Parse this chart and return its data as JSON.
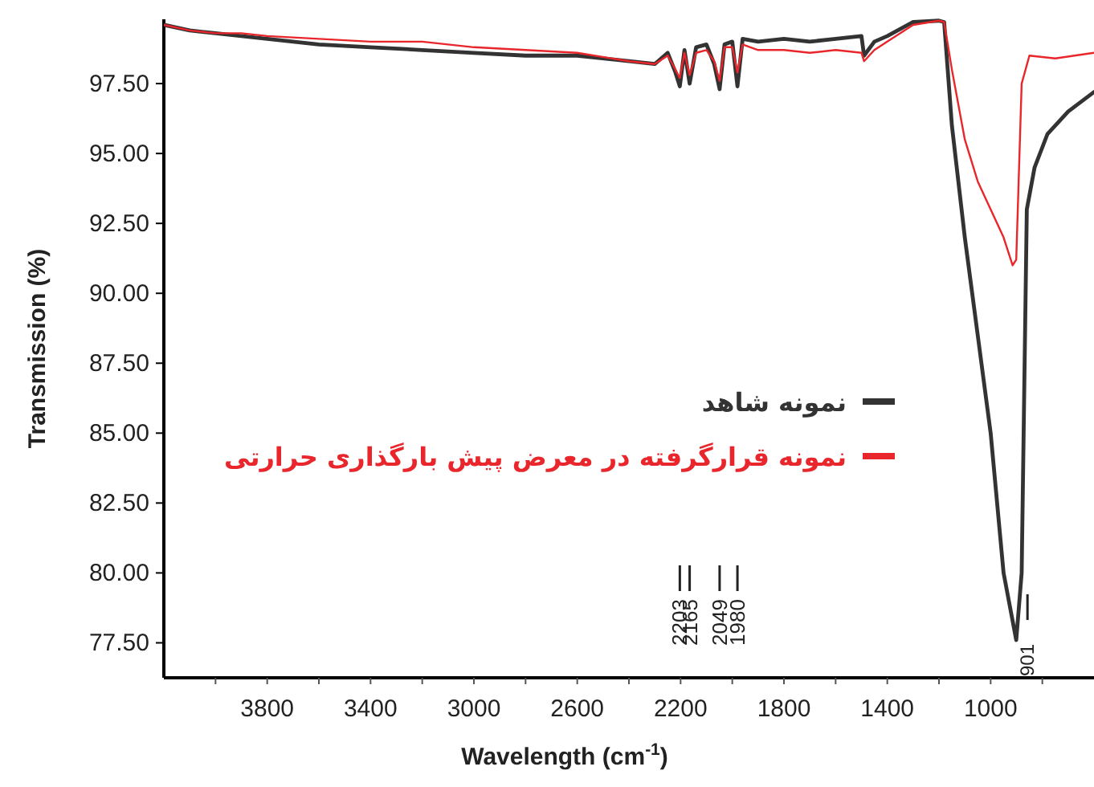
{
  "chart_data": {
    "type": "line",
    "xlabel": "Wavelength (cm$^{-1}$)",
    "ylabel": "Transmission (%)",
    "xlim": [
      4200,
      600
    ],
    "ylim": [
      76.25,
      99.8
    ],
    "xticks": [
      {
        "value": 4000,
        "label": null
      },
      {
        "value": 3800,
        "label": "3800"
      },
      {
        "value": 3600,
        "label": null
      },
      {
        "value": 3400,
        "label": "3400"
      },
      {
        "value": 3200,
        "label": null
      },
      {
        "value": 3000,
        "label": "3000"
      },
      {
        "value": 2800,
        "label": null
      },
      {
        "value": 2600,
        "label": "2600"
      },
      {
        "value": 2400,
        "label": null
      },
      {
        "value": 2200,
        "label": "2200"
      },
      {
        "value": 2000,
        "label": null
      },
      {
        "value": 1800,
        "label": "1800"
      },
      {
        "value": 1600,
        "label": null
      },
      {
        "value": 1400,
        "label": "1400"
      },
      {
        "value": 1200,
        "label": null
      },
      {
        "value": 1000,
        "label": "1000"
      },
      {
        "value": 800,
        "label": null
      }
    ],
    "yticks": [
      {
        "value": 77.5,
        "label": "77.50"
      },
      {
        "value": 80,
        "label": "80.00"
      },
      {
        "value": 82.5,
        "label": "82.50"
      },
      {
        "value": 85,
        "label": "85.00"
      },
      {
        "value": 87.5,
        "label": "87.50"
      },
      {
        "value": 90,
        "label": "90.00"
      },
      {
        "value": 92.5,
        "label": "92.50"
      },
      {
        "value": 95,
        "label": "95.00"
      },
      {
        "value": 97.5,
        "label": "97.50"
      }
    ],
    "legend": "center",
    "series": [
      {
        "name": "نمونه شاهد",
        "color": "#333333",
        "x": [
          4200,
          4100,
          4000,
          3900,
          3800,
          3600,
          3400,
          3200,
          3000,
          2800,
          2600,
          2400,
          2300,
          2250,
          2220,
          2203,
          2185,
          2165,
          2140,
          2100,
          2070,
          2049,
          2030,
          2000,
          1980,
          1960,
          1900,
          1800,
          1700,
          1600,
          1500,
          1490,
          1450,
          1400,
          1300,
          1200,
          1180,
          1150,
          1100,
          1050,
          1000,
          950,
          901,
          880,
          860,
          830,
          780,
          700,
          600
        ],
        "values": [
          99.6,
          99.4,
          99.3,
          99.2,
          99.1,
          98.9,
          98.8,
          98.7,
          98.6,
          98.5,
          98.5,
          98.3,
          98.2,
          98.6,
          97.9,
          97.4,
          98.7,
          97.5,
          98.8,
          98.9,
          98.2,
          97.3,
          98.9,
          99.0,
          97.4,
          99.1,
          99.0,
          99.1,
          99.0,
          99.1,
          99.2,
          98.5,
          99.0,
          99.2,
          99.7,
          99.75,
          99.7,
          96,
          92,
          88.5,
          85,
          80,
          77.6,
          80,
          93,
          94.5,
          95.7,
          96.5,
          97.2
        ]
      },
      {
        "name": "نمونه قرارگرفته در معرض پیش بارگذاری حرارتی",
        "color": "#e8262b",
        "x": [
          4200,
          4100,
          4000,
          3900,
          3800,
          3600,
          3400,
          3200,
          3000,
          2800,
          2600,
          2400,
          2300,
          2250,
          2220,
          2203,
          2185,
          2165,
          2140,
          2100,
          2070,
          2049,
          2030,
          2000,
          1980,
          1960,
          1900,
          1800,
          1700,
          1600,
          1500,
          1490,
          1450,
          1400,
          1300,
          1200,
          1180,
          1150,
          1100,
          1050,
          1000,
          950,
          915,
          901,
          880,
          850,
          750,
          600
        ],
        "values": [
          99.6,
          99.4,
          99.3,
          99.3,
          99.2,
          99.1,
          99.0,
          99.0,
          98.8,
          98.7,
          98.6,
          98.3,
          98.2,
          98.5,
          98.0,
          97.7,
          98.6,
          97.8,
          98.6,
          98.7,
          98.3,
          97.6,
          98.8,
          98.8,
          97.9,
          98.9,
          98.7,
          98.7,
          98.6,
          98.7,
          98.6,
          98.3,
          98.7,
          99.0,
          99.6,
          99.75,
          99.7,
          98,
          95.5,
          94,
          93,
          92,
          91.0,
          91.2,
          97.5,
          98.5,
          98.4,
          98.6
        ]
      }
    ],
    "annotations": [
      "2203",
      "2165",
      "2049",
      "1980",
      "901"
    ]
  }
}
